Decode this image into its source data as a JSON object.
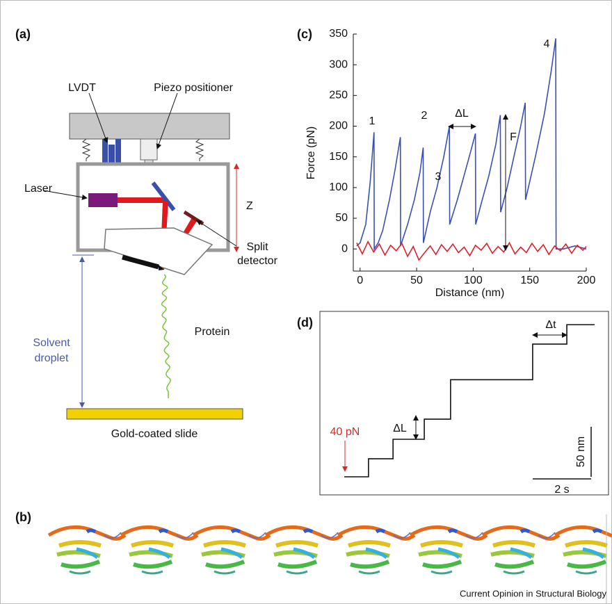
{
  "panels": {
    "a": {
      "label": "(a)",
      "lvdt": "LVDT",
      "piezo": "Piezo positioner",
      "laser": "Laser",
      "z": "Z",
      "detector": [
        "Split",
        "detector"
      ],
      "droplet": [
        "Solvent",
        "droplet"
      ],
      "protein": "Protein",
      "slide": "Gold-coated slide"
    },
    "b": {
      "label": "(b)"
    },
    "c": {
      "label": "(c)"
    },
    "d": {
      "label": "(d)"
    }
  },
  "credit": "Current Opinion in Structural Biology",
  "chart_data": [
    {
      "type": "line",
      "xlabel": "Distance (nm)",
      "ylabel": "Force (pN)",
      "xlim": [
        -6,
        200
      ],
      "ylim": [
        -36,
        350
      ],
      "xticks": [
        0,
        50,
        100,
        150,
        200
      ],
      "yticks": [
        0,
        50,
        100,
        150,
        200,
        250,
        300,
        350
      ],
      "annotations": [
        "1",
        "2",
        "3",
        "4",
        "ΔL",
        "F"
      ],
      "series": [
        {
          "color": "#3a50b4",
          "x": [
            -3,
            0,
            5,
            9,
            12.3,
            12.5,
            16,
            20,
            26,
            31,
            35.6,
            35.8,
            42,
            48,
            53,
            55.8,
            56,
            62,
            68,
            74,
            79,
            79.2,
            86,
            92,
            98,
            102,
            102.2,
            108,
            114,
            120,
            124,
            124.3,
            130,
            136,
            142,
            146,
            146.3,
            155,
            163,
            169,
            173,
            173.3,
            180,
            190,
            200
          ],
          "values": [
            5,
            10,
            40,
            110,
            190,
            0,
            10,
            30,
            80,
            130,
            182,
            5,
            40,
            80,
            125,
            165,
            10,
            60,
            100,
            150,
            200,
            40,
            80,
            120,
            160,
            188,
            40,
            80,
            120,
            170,
            218,
            60,
            100,
            150,
            200,
            238,
            80,
            150,
            220,
            290,
            343,
            0,
            0,
            5,
            0
          ]
        },
        {
          "color": "#e0202a",
          "x": [
            -3,
            2,
            7,
            12,
            17,
            22,
            27,
            32,
            37,
            42,
            47,
            52,
            57,
            62,
            67,
            72,
            77,
            82,
            87,
            92,
            97,
            102,
            107,
            112,
            117,
            122,
            127,
            132,
            137,
            142,
            147,
            152,
            157,
            162,
            167,
            172,
            177,
            182,
            187,
            192,
            197,
            200
          ],
          "values": [
            10,
            -8,
            12,
            -5,
            8,
            -10,
            6,
            -3,
            9,
            -12,
            4,
            -18,
            -6,
            5,
            -9,
            7,
            -4,
            8,
            -6,
            3,
            -11,
            6,
            -2,
            9,
            -7,
            4,
            -5,
            10,
            -8,
            3,
            -6,
            9,
            -4,
            7,
            -9,
            5,
            -3,
            8,
            -7,
            6,
            -2,
            4
          ]
        }
      ]
    },
    {
      "type": "step",
      "x": [
        0,
        0.83,
        1.67,
        2.74,
        3.64,
        6.45,
        7.62,
        8.57
      ],
      "values": [
        0,
        18,
        37.5,
        57.6,
        97,
        132.6,
        152,
        152
      ],
      "color": "#111111",
      "annotations": [
        "40 pN",
        "ΔL",
        "Δt"
      ],
      "scale_bars": [
        {
          "value": 50,
          "label": "50 nm"
        },
        {
          "value": 2,
          "label": "2 s"
        }
      ]
    }
  ]
}
